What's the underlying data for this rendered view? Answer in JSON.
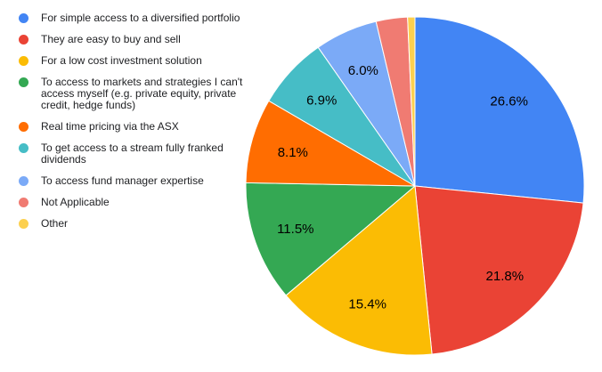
{
  "chart_data": {
    "type": "pie",
    "title": "",
    "legend_position": "left",
    "start_angle_deg": 0,
    "direction": "clockwise",
    "label_color": "#000000",
    "separator_color": "#ffffff",
    "slices": [
      {
        "label": "For simple access to a diversified portfolio",
        "value": 26.6,
        "pct_label": "26.6%",
        "color": "#4285F4"
      },
      {
        "label": "They are easy to buy and sell",
        "value": 21.8,
        "pct_label": "21.8%",
        "color": "#EA4335"
      },
      {
        "label": "For a low cost investment solution",
        "value": 15.4,
        "pct_label": "15.4%",
        "color": "#FBBC04"
      },
      {
        "label": "To access to markets and strategies I can't access myself (e.g. private equity, private credit, hedge funds)",
        "value": 11.5,
        "pct_label": "11.5%",
        "color": "#34A853"
      },
      {
        "label": "Real time pricing via the ASX",
        "value": 8.1,
        "pct_label": "8.1%",
        "color": "#FF6D01"
      },
      {
        "label": "To get access to a stream fully franked dividends",
        "value": 6.9,
        "pct_label": "6.9%",
        "color": "#46BDC6"
      },
      {
        "label": "To access fund manager expertise",
        "value": 6.0,
        "pct_label": "6.0%",
        "color": "#7BAAF7"
      },
      {
        "label": "Not Applicable",
        "value": 3.0,
        "pct_label": "",
        "color": "#F07B72"
      },
      {
        "label": "Other",
        "value": 0.7,
        "pct_label": "",
        "color": "#FCD04F"
      }
    ]
  }
}
